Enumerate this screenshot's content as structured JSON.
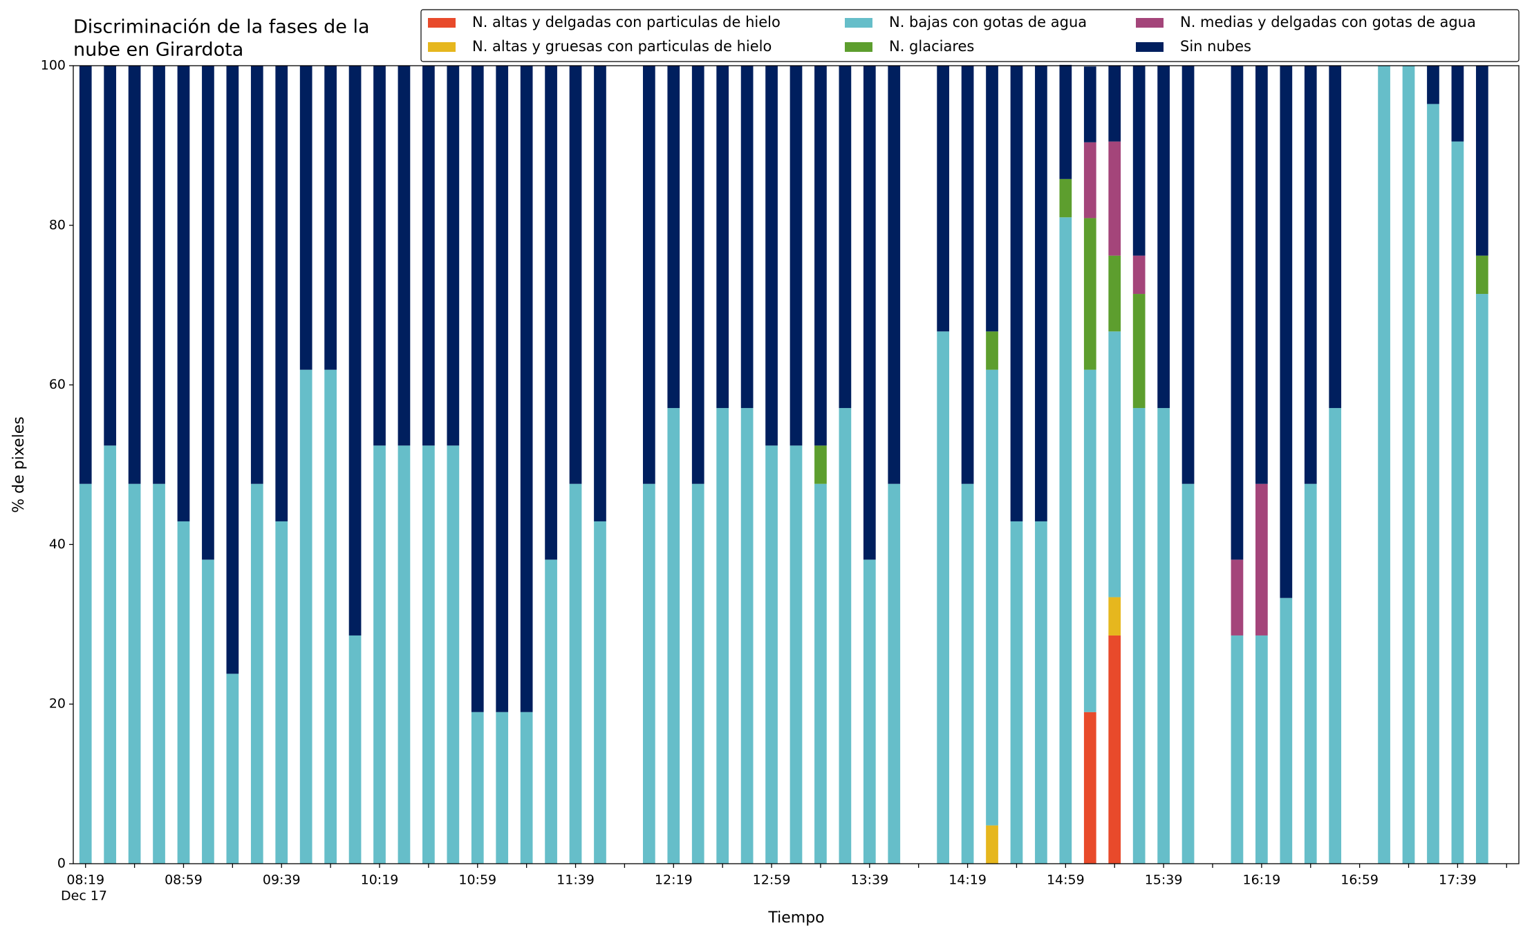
{
  "chart_data": {
    "type": "stacked_bar",
    "title": [
      "Discriminación de la fases de la",
      "nube en Girardota"
    ],
    "x_label": "Tiempo",
    "y_label": "% de pixeles",
    "date_label": "Dec 17",
    "categories": [
      "08:19",
      null,
      null,
      null,
      "08:59",
      null,
      null,
      null,
      "09:39",
      null,
      null,
      null,
      "10:19",
      null,
      null,
      null,
      "10:59",
      null,
      null,
      null,
      "11:39",
      null,
      null,
      null,
      "12:19",
      null,
      null,
      null,
      "12:59",
      null,
      null,
      null,
      "13:39",
      null,
      null,
      null,
      "14:19",
      null,
      null,
      null,
      "14:59",
      null,
      null,
      null,
      "15:39",
      null,
      null,
      null,
      "16:19",
      null,
      null,
      null,
      "16:59",
      null,
      null,
      null,
      "17:39",
      null,
      null
    ],
    "ylim": [
      0,
      100
    ],
    "yticks": [
      0,
      20,
      40,
      60,
      80,
      100
    ],
    "grid": false,
    "legend": "upper right",
    "series": [
      {
        "name": "N. altas y delgadas con particulas de hielo",
        "color": "#e84a2b",
        "values": [
          0,
          0,
          0,
          0,
          0,
          0,
          0,
          0,
          0,
          0,
          0,
          0,
          0,
          0,
          0,
          0,
          0,
          0,
          0,
          0,
          0,
          0,
          null,
          0,
          0,
          0,
          0,
          0,
          0,
          0,
          0,
          0,
          0,
          0,
          null,
          0,
          0,
          0,
          0,
          0,
          0,
          19,
          28.6,
          0,
          0,
          0,
          null,
          0,
          0,
          0,
          0,
          0,
          null,
          0,
          0,
          0,
          0,
          0,
          null
        ]
      },
      {
        "name": "N. altas y gruesas con particulas de hielo",
        "color": "#e6b71e",
        "values": [
          0,
          0,
          0,
          0,
          0,
          0,
          0,
          0,
          0,
          0,
          0,
          0,
          0,
          0,
          0,
          0,
          0,
          0,
          0,
          0,
          0,
          0,
          null,
          0,
          0,
          0,
          0,
          0,
          0,
          0,
          0,
          0,
          0,
          0,
          null,
          0,
          0,
          4.8,
          0,
          0,
          0,
          0,
          4.8,
          0,
          0,
          0,
          null,
          0,
          0,
          0,
          0,
          0,
          null,
          0,
          0,
          0,
          0,
          0,
          null
        ]
      },
      {
        "name": "N. bajas con gotas de agua",
        "color": "#66bec9",
        "values": [
          47.6,
          52.4,
          47.6,
          47.6,
          42.9,
          38.1,
          23.8,
          47.6,
          42.9,
          61.9,
          61.9,
          28.6,
          52.4,
          52.4,
          52.4,
          52.4,
          19,
          19,
          19,
          38.1,
          47.6,
          42.9,
          null,
          47.6,
          57.1,
          47.6,
          57.1,
          57.1,
          52.4,
          52.4,
          47.6,
          57.1,
          38.1,
          47.6,
          null,
          66.7,
          47.6,
          57.1,
          42.9,
          42.9,
          81,
          42.9,
          33.3,
          57.1,
          57.1,
          47.6,
          null,
          28.6,
          28.6,
          33.3,
          47.6,
          57.1,
          null,
          100,
          100,
          95.2,
          90.5,
          71.4,
          null
        ]
      },
      {
        "name": "N. glaciares",
        "color": "#5d9e2e",
        "values": [
          0,
          0,
          0,
          0,
          0,
          0,
          0,
          0,
          0,
          0,
          0,
          0,
          0,
          0,
          0,
          0,
          0,
          0,
          0,
          0,
          0,
          0,
          null,
          0,
          0,
          0,
          0,
          0,
          0,
          0,
          4.8,
          0,
          0,
          0,
          null,
          0,
          0,
          4.8,
          0,
          0,
          4.8,
          19,
          9.5,
          14.3,
          0,
          0,
          null,
          0,
          0,
          0,
          0,
          0,
          null,
          0,
          0,
          0,
          0,
          4.8,
          null
        ]
      },
      {
        "name": "N. medias y delgadas con gotas de agua",
        "color": "#a4457a",
        "values": [
          0,
          0,
          0,
          0,
          0,
          0,
          0,
          0,
          0,
          0,
          0,
          0,
          0,
          0,
          0,
          0,
          0,
          0,
          0,
          0,
          0,
          0,
          null,
          0,
          0,
          0,
          0,
          0,
          0,
          0,
          0,
          0,
          0,
          0,
          null,
          0,
          0,
          0,
          0,
          0,
          0,
          9.5,
          14.3,
          4.8,
          0,
          0,
          null,
          9.5,
          19,
          0,
          0,
          0,
          null,
          0,
          0,
          0,
          0,
          0,
          null
        ]
      },
      {
        "name": "Sin nubes",
        "color": "#001f5e",
        "values": [
          52.4,
          47.6,
          52.4,
          52.4,
          57.1,
          61.9,
          76.2,
          52.4,
          57.1,
          38.1,
          38.1,
          71.4,
          47.6,
          47.6,
          47.6,
          47.6,
          81,
          81,
          81,
          61.9,
          52.4,
          57.1,
          null,
          52.4,
          42.9,
          52.4,
          42.9,
          42.9,
          47.6,
          47.6,
          47.6,
          42.9,
          61.9,
          52.4,
          null,
          33.3,
          52.4,
          33.3,
          57.1,
          57.1,
          14.3,
          9.5,
          9.5,
          23.8,
          42.9,
          52.4,
          null,
          61.9,
          52.4,
          66.7,
          52.4,
          42.9,
          null,
          0,
          0,
          4.8,
          9.5,
          23.8,
          null
        ]
      }
    ]
  }
}
